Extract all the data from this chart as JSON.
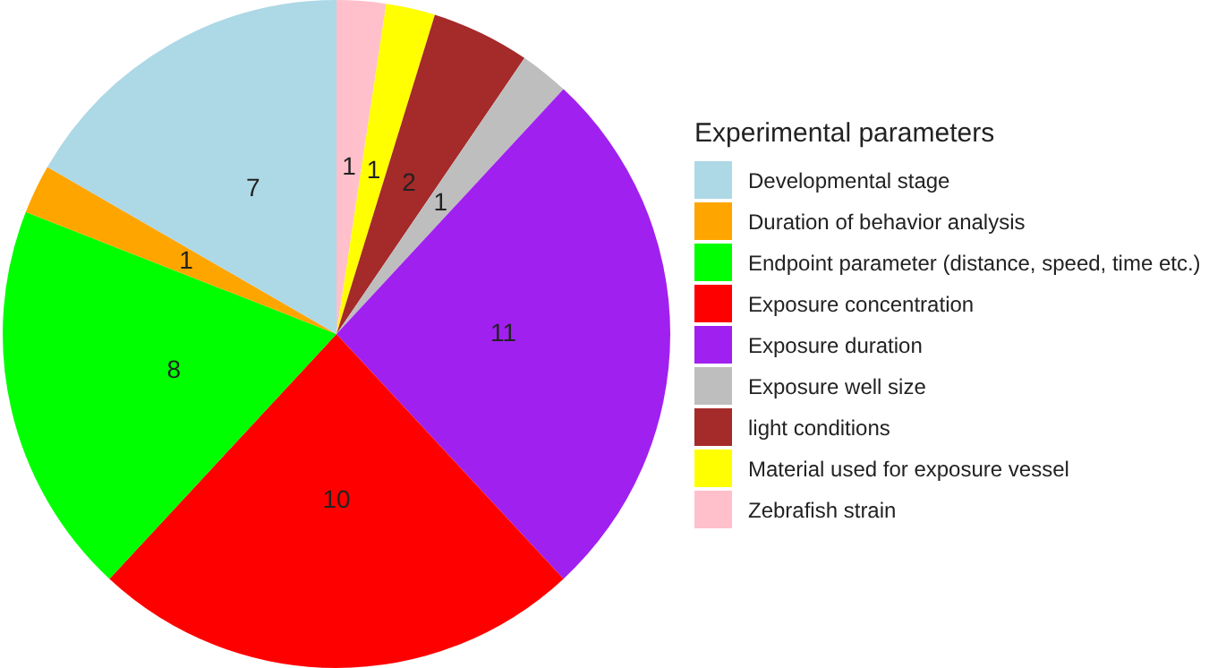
{
  "chart_data": {
    "type": "pie",
    "legend_title": "Experimental parameters",
    "legend": "right",
    "data_labels": true,
    "categories": [
      "Developmental stage",
      "Duration of behavior analysis",
      "Endpoint parameter (distance, speed, time etc.)",
      "Exposure concentration",
      "Exposure duration",
      "Exposure well size",
      "light conditions",
      "Material used for exposure vessel",
      "Zebrafish strain"
    ],
    "values": [
      7,
      1,
      8,
      10,
      11,
      1,
      2,
      1,
      1
    ],
    "colors": [
      "#add8e6",
      "#ffa500",
      "#00ff00",
      "#ff0000",
      "#a020f0",
      "#bebebe",
      "#a52a2a",
      "#ffff00",
      "#ffc0cb"
    ]
  }
}
